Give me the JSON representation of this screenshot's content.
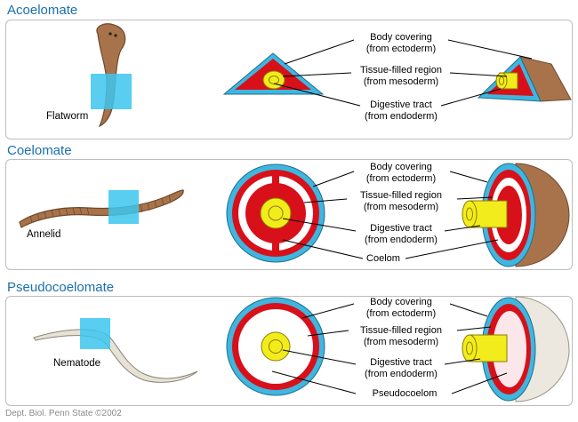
{
  "sections": [
    {
      "title": "Acoelomate",
      "animal": "Flatworm",
      "labels": {
        "body": [
          "Body covering",
          "(from ectoderm)"
        ],
        "tissue": [
          "Tissue-filled region",
          "(from mesoderm)"
        ],
        "digestive": [
          "Digestive tract",
          "(from endoderm)"
        ]
      }
    },
    {
      "title": "Coelomate",
      "animal": "Annelid",
      "labels": {
        "body": [
          "Body covering",
          "(from ectoderm)"
        ],
        "tissue": [
          "Tissue-filled region",
          "(from mesoderm)"
        ],
        "digestive": [
          "Digestive tract",
          "(from endoderm)"
        ],
        "cavity": "Coelom"
      }
    },
    {
      "title": "Pseudocoelomate",
      "animal": "Nematode",
      "labels": {
        "body": [
          "Body covering",
          "(from ectoderm)"
        ],
        "tissue": [
          "Tissue-filled region",
          "(from mesoderm)"
        ],
        "digestive": [
          "Digestive tract",
          "(from endoderm)"
        ],
        "cavity": "Pseudocoelom"
      }
    }
  ],
  "credit": "Dept. Biol. Penn State ©2002",
  "colors": {
    "title": "#1a6fae",
    "ectoderm": "#3fb6df",
    "mesoderm": "#d8101a",
    "endoderm": "#f2ec1c",
    "cavity": "#ffffff",
    "worm": "#a8734a",
    "nematode": "#e7e2d6",
    "highlight": "#3cc6ee"
  }
}
